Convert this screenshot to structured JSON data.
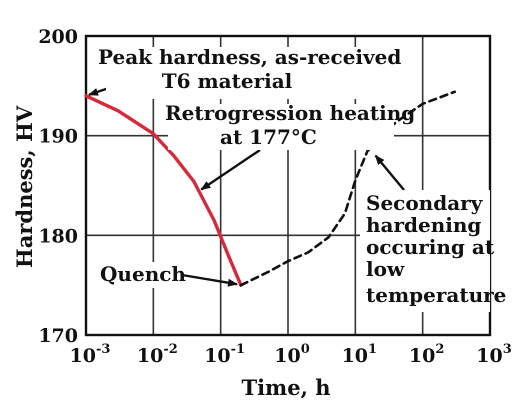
{
  "chart_data": {
    "type": "line",
    "xlabel": "Time, h",
    "ylabel": "Hardness, HV",
    "x_scale": "log",
    "xlim": [
      0.001,
      1000
    ],
    "ylim": [
      170,
      200
    ],
    "x_ticks": [
      {
        "value": 0.001,
        "base": "10",
        "exp": "-3"
      },
      {
        "value": 0.01,
        "base": "10",
        "exp": "-2"
      },
      {
        "value": 0.1,
        "base": "10",
        "exp": "-1"
      },
      {
        "value": 1,
        "base": "10",
        "exp": "0"
      },
      {
        "value": 10,
        "base": "10",
        "exp": "1"
      },
      {
        "value": 100,
        "base": "10",
        "exp": "2"
      },
      {
        "value": 1000,
        "base": "10",
        "exp": "3"
      }
    ],
    "y_ticks": [
      "170",
      "180",
      "190",
      "200"
    ],
    "grid": true,
    "series": [
      {
        "style": "solid",
        "color": "#d42a3c",
        "x": [
          0.001,
          0.003,
          0.01,
          0.02,
          0.04,
          0.08,
          0.13,
          0.2
        ],
        "y": [
          194,
          192.5,
          190.2,
          188,
          185.4,
          181.5,
          178,
          175
        ]
      },
      {
        "style": "dashed",
        "color": "#111111",
        "x": [
          0.2,
          0.5,
          1,
          2,
          4,
          7,
          10,
          15,
          25,
          50,
          100,
          300
        ],
        "y": [
          175,
          176.3,
          177.4,
          178.3,
          179.8,
          182.2,
          185.5,
          188.4,
          190.3,
          191.8,
          193.2,
          194.4
        ]
      }
    ],
    "annotations": [
      {
        "lines": [
          "Peak hardness, as-received",
          "T6 material"
        ]
      },
      {
        "lines": [
          "Retrogression heating",
          "at 177°C"
        ]
      },
      {
        "lines": [
          "Quench"
        ]
      },
      {
        "lines": [
          "Secondary",
          "hardening",
          "occuring at",
          "low",
          "temperature"
        ]
      }
    ]
  }
}
